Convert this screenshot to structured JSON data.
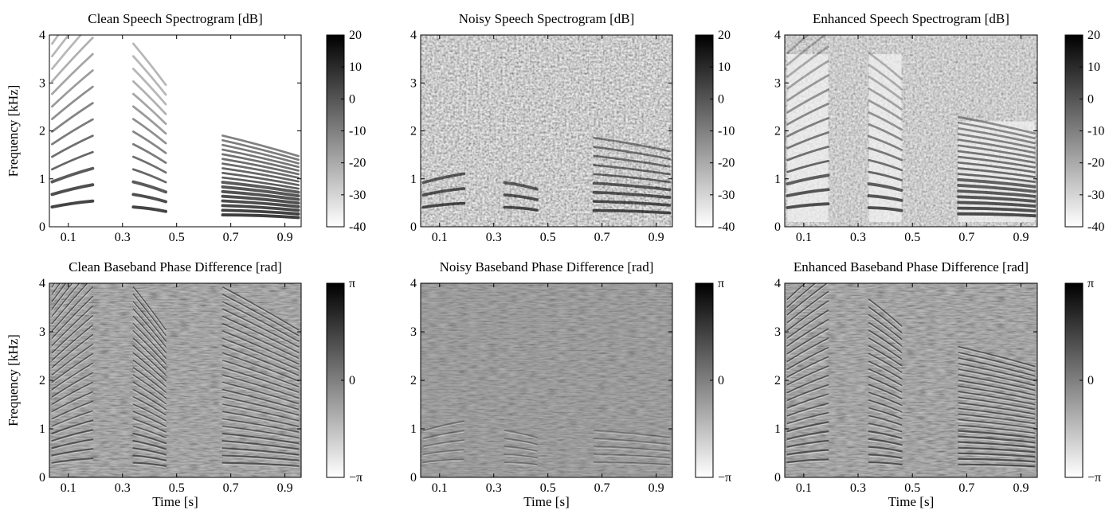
{
  "figure": {
    "xlabel": "Time [s]",
    "ylabel": "Frequency [kHz]"
  },
  "chart_data": [
    {
      "type": "heatmap",
      "title": "Clean Speech Spectrogram [dB]",
      "xlabel": "",
      "ylabel": "Frequency [kHz]",
      "xlim": [
        0.03,
        0.96
      ],
      "ylim": [
        0,
        4
      ],
      "xticks": [
        "0.1",
        "0.3",
        "0.5",
        "0.7",
        "0.9"
      ],
      "yticks": [
        "0",
        "1",
        "2",
        "3",
        "4"
      ],
      "colorbar": {
        "range": [
          -40,
          20
        ],
        "ticks": [
          "20",
          "10",
          "0",
          "-10",
          "-20",
          "-30",
          "-40"
        ],
        "colormap": "gray (white low, black high)"
      },
      "speech_segments_s": [
        [
          0.04,
          0.19
        ],
        [
          0.34,
          0.46
        ],
        [
          0.67,
          0.95
        ]
      ]
    },
    {
      "type": "heatmap",
      "title": "Noisy Speech Spectrogram [dB]",
      "xlabel": "",
      "ylabel": "",
      "xlim": [
        0.03,
        0.96
      ],
      "ylim": [
        0,
        4
      ],
      "xticks": [
        "0.1",
        "0.3",
        "0.5",
        "0.7",
        "0.9"
      ],
      "yticks": [
        "0",
        "1",
        "2",
        "3",
        "4"
      ],
      "colorbar": {
        "range": [
          -40,
          20
        ],
        "ticks": [
          "20",
          "10",
          "0",
          "-10",
          "-20",
          "-30",
          "-40"
        ],
        "colormap": "gray (white low, black high)"
      },
      "speech_segments_s": [
        [
          0.04,
          0.19
        ],
        [
          0.34,
          0.46
        ],
        [
          0.67,
          0.95
        ]
      ]
    },
    {
      "type": "heatmap",
      "title": "Enhanced Speech Spectrogram [dB]",
      "xlabel": "",
      "ylabel": "",
      "xlim": [
        0.03,
        0.96
      ],
      "ylim": [
        0,
        4
      ],
      "xticks": [
        "0.1",
        "0.3",
        "0.5",
        "0.7",
        "0.9"
      ],
      "yticks": [
        "0",
        "1",
        "2",
        "3",
        "4"
      ],
      "colorbar": {
        "range": [
          -40,
          20
        ],
        "ticks": [
          "20",
          "10",
          "0",
          "-10",
          "-20",
          "-30",
          "-40"
        ],
        "colormap": "gray (white low, black high)"
      },
      "speech_segments_s": [
        [
          0.04,
          0.19
        ],
        [
          0.34,
          0.46
        ],
        [
          0.67,
          0.95
        ]
      ]
    },
    {
      "type": "heatmap",
      "title": "Clean Baseband Phase Difference [rad]",
      "xlabel": "Time [s]",
      "ylabel": "Frequency [kHz]",
      "xlim": [
        0.03,
        0.96
      ],
      "ylim": [
        0,
        4
      ],
      "xticks": [
        "0.1",
        "0.3",
        "0.5",
        "0.7",
        "0.9"
      ],
      "yticks": [
        "0",
        "1",
        "2",
        "3",
        "4"
      ],
      "colorbar": {
        "range": [
          -3.1416,
          3.1416
        ],
        "ticks": [
          "π",
          "0",
          "−π"
        ],
        "colormap": "gray (white low, black high)"
      },
      "speech_segments_s": [
        [
          0.04,
          0.19
        ],
        [
          0.34,
          0.46
        ],
        [
          0.67,
          0.95
        ]
      ]
    },
    {
      "type": "heatmap",
      "title": "Noisy Baseband Phase Difference [rad]",
      "xlabel": "Time [s]",
      "ylabel": "",
      "xlim": [
        0.03,
        0.96
      ],
      "ylim": [
        0,
        4
      ],
      "xticks": [
        "0.1",
        "0.3",
        "0.5",
        "0.7",
        "0.9"
      ],
      "yticks": [
        "0",
        "1",
        "2",
        "3",
        "4"
      ],
      "colorbar": {
        "range": [
          -3.1416,
          3.1416
        ],
        "ticks": [
          "π",
          "0",
          "−π"
        ],
        "colormap": "gray (white low, black high)"
      },
      "speech_segments_s": [
        [
          0.04,
          0.19
        ],
        [
          0.34,
          0.46
        ],
        [
          0.67,
          0.95
        ]
      ]
    },
    {
      "type": "heatmap",
      "title": "Enhanced Baseband Phase Difference [rad]",
      "xlabel": "Time [s]",
      "ylabel": "",
      "xlim": [
        0.03,
        0.96
      ],
      "ylim": [
        0,
        4
      ],
      "xticks": [
        "0.1",
        "0.3",
        "0.5",
        "0.7",
        "0.9"
      ],
      "yticks": [
        "0",
        "1",
        "2",
        "3",
        "4"
      ],
      "colorbar": {
        "range": [
          -3.1416,
          3.1416
        ],
        "ticks": [
          "π",
          "0",
          "−π"
        ],
        "colormap": "gray (white low, black high)"
      },
      "speech_segments_s": [
        [
          0.04,
          0.19
        ],
        [
          0.34,
          0.46
        ],
        [
          0.67,
          0.95
        ]
      ]
    }
  ]
}
